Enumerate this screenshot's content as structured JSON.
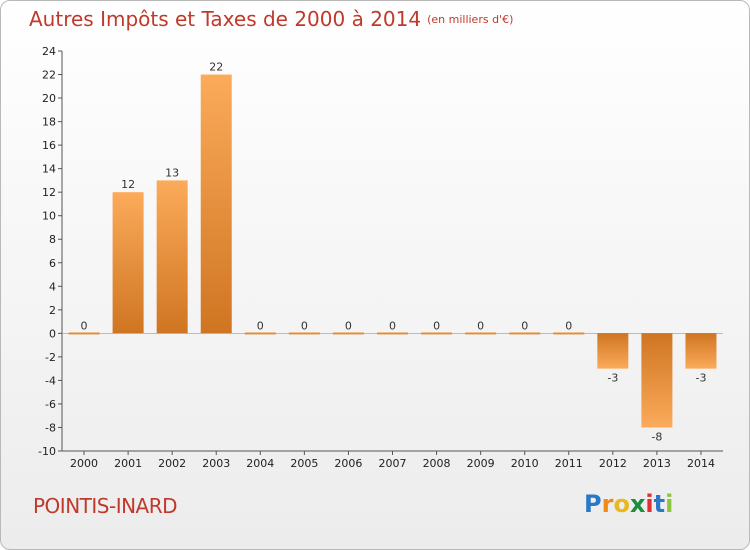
{
  "header": {
    "title": "Autres Impôts et Taxes de 2000 à 2014",
    "unit": "(en milliers d'€)"
  },
  "footer": {
    "commune": "POINTIS-INARD",
    "logo_letters": [
      "P",
      "r",
      "o",
      "x",
      "i",
      "t",
      "i"
    ],
    "logo_colors": [
      "#2a78c8",
      "#f08a1c",
      "#e8b81e",
      "#1e8c3c",
      "#e03030",
      "#2a78c8",
      "#8cc63f"
    ]
  },
  "colors": {
    "bar_light": "#fbab5a",
    "bar_dark": "#cf7522",
    "title": "#c0392b",
    "axis": "#555555"
  },
  "chart_data": {
    "type": "bar",
    "title": "Autres Impôts et Taxes de 2000 à 2014",
    "categories": [
      "2000",
      "2001",
      "2002",
      "2003",
      "2004",
      "2005",
      "2006",
      "2007",
      "2008",
      "2009",
      "2010",
      "2011",
      "2012",
      "2013",
      "2014"
    ],
    "values": [
      0,
      12,
      13,
      22,
      0,
      0,
      0,
      0,
      0,
      0,
      0,
      0,
      -3,
      -8,
      -3
    ],
    "data_labels": [
      "0",
      "12",
      "13",
      "22",
      "0",
      "0",
      "0",
      "0",
      "0",
      "0",
      "0",
      "0",
      "-3",
      "-8",
      "-3"
    ],
    "ylim": [
      -10,
      24
    ],
    "yticks": [
      -10,
      -8,
      -6,
      -4,
      -2,
      0,
      2,
      4,
      6,
      8,
      10,
      12,
      14,
      16,
      18,
      20,
      22,
      24
    ],
    "grid": false,
    "legend": "none"
  }
}
